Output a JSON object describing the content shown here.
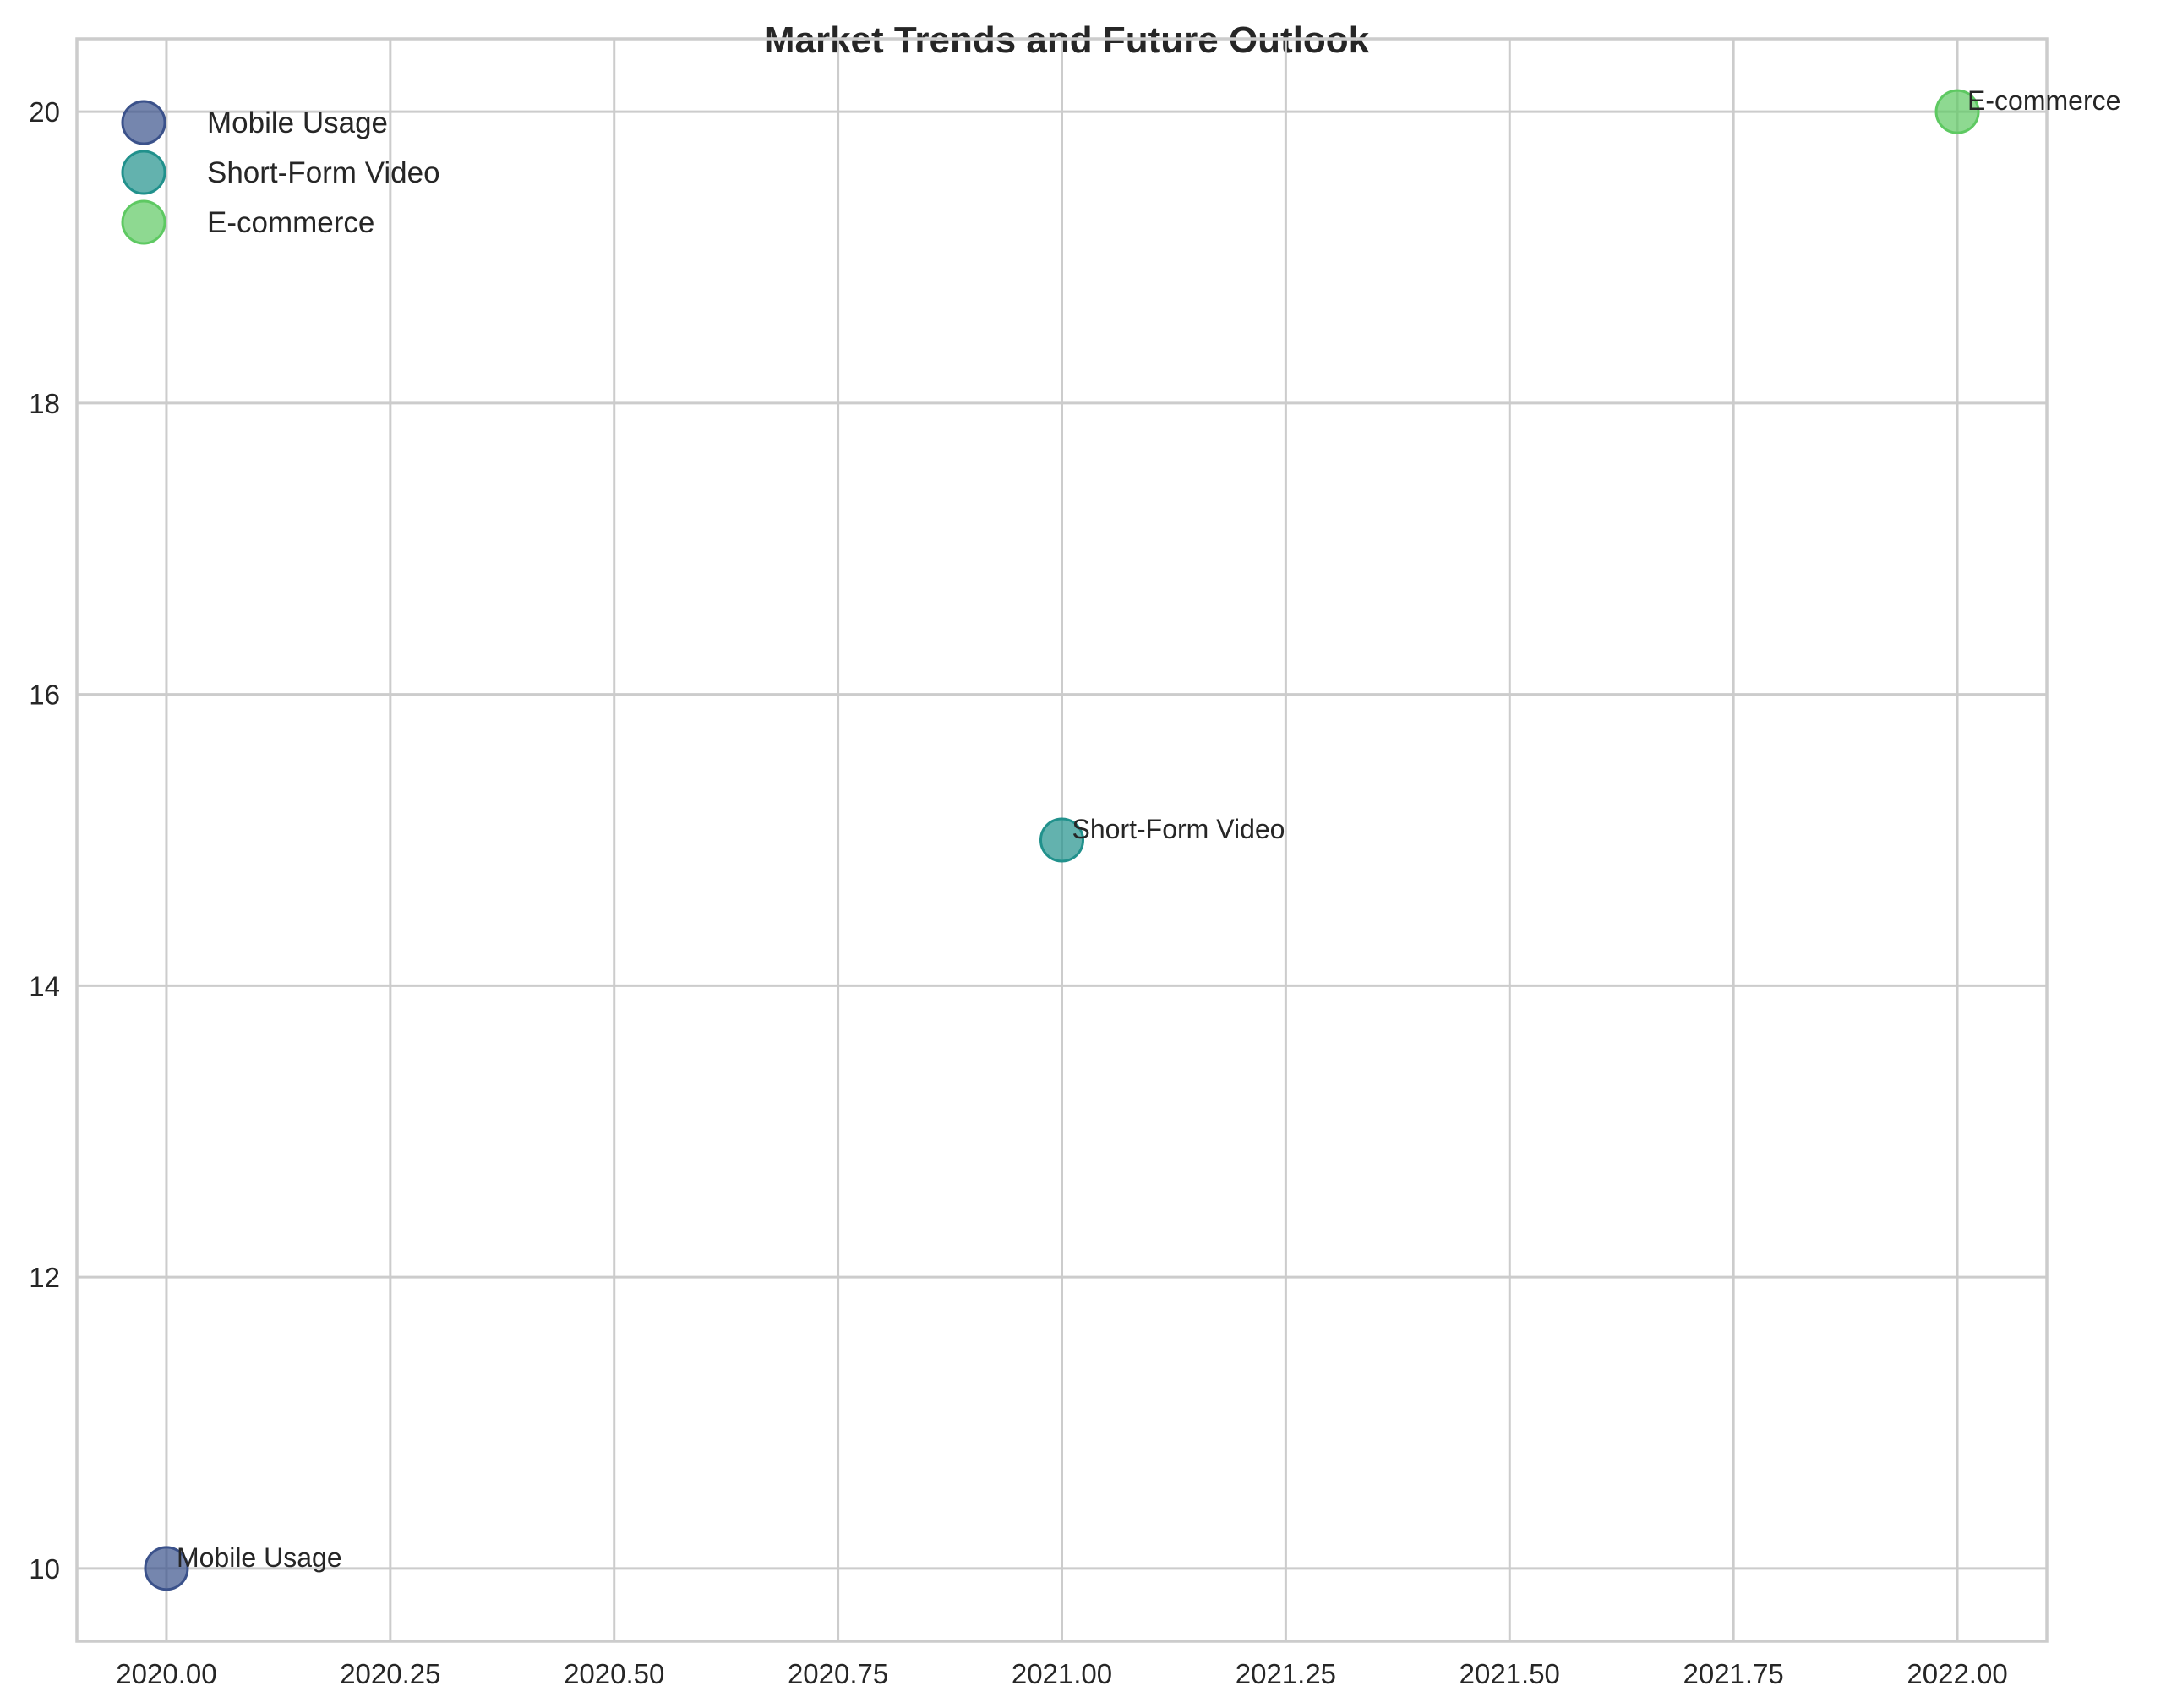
{
  "chart_data": {
    "type": "scatter",
    "title": "Market Trends and Future Outlook",
    "xlabel": "",
    "ylabel": "",
    "xlim": [
      2019.9,
      2022.1
    ],
    "ylim": [
      9.5,
      20.5
    ],
    "xticks": [
      2020.0,
      2020.25,
      2020.5,
      2020.75,
      2021.0,
      2021.25,
      2021.5,
      2021.75,
      2022.0
    ],
    "xtick_labels": [
      "2020.00",
      "2020.25",
      "2020.50",
      "2020.75",
      "2021.00",
      "2021.25",
      "2021.50",
      "2021.75",
      "2022.00"
    ],
    "yticks": [
      10,
      12,
      14,
      16,
      18,
      20
    ],
    "ytick_labels": [
      "10",
      "12",
      "14",
      "16",
      "18",
      "20"
    ],
    "grid": true,
    "legend_position": "top-left",
    "series": [
      {
        "name": "Mobile Usage",
        "color": "#3b528b",
        "points": [
          {
            "x": 2020,
            "y": 10,
            "label": "Mobile Usage"
          }
        ]
      },
      {
        "name": "Short-Form Video",
        "color": "#21918c",
        "points": [
          {
            "x": 2021,
            "y": 15,
            "label": "Short-Form Video"
          }
        ]
      },
      {
        "name": "E-commerce",
        "color": "#5ec962",
        "points": [
          {
            "x": 2022,
            "y": 20,
            "label": "E-commerce"
          }
        ]
      }
    ]
  }
}
